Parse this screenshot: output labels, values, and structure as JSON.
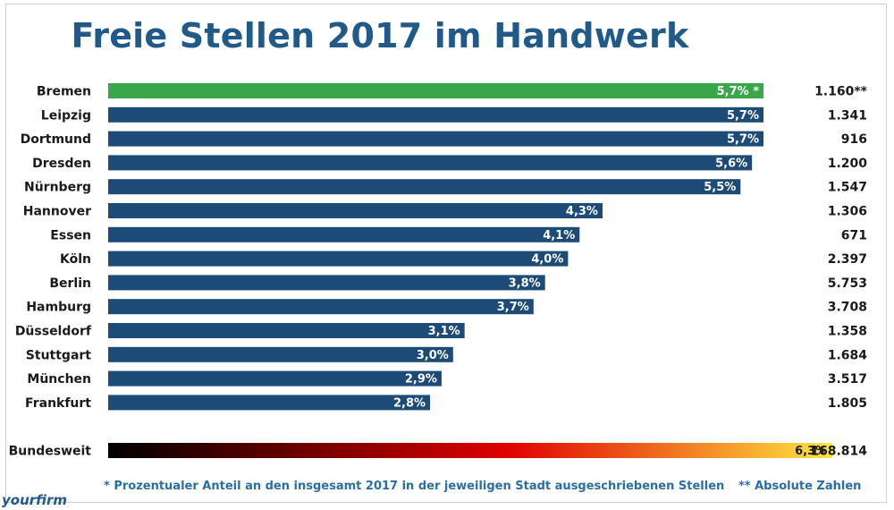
{
  "title": "Freie Stellen 2017 im Handwerk",
  "chart_data": {
    "type": "bar",
    "orientation": "horizontal",
    "title": "Freie Stellen 2017 im Handwerk",
    "xlim": [
      0,
      6.3
    ],
    "categories": [
      "Bremen",
      "Leipzig",
      "Dortmund",
      "Dresden",
      "Nürnberg",
      "Hannover",
      "Essen",
      "Köln",
      "Berlin",
      "Hamburg",
      "Düsseldorf",
      "Stuttgart",
      "München",
      "Frankfurt"
    ],
    "values": [
      5.7,
      5.7,
      5.7,
      5.6,
      5.5,
      4.3,
      4.1,
      4.0,
      3.8,
      3.7,
      3.1,
      3.0,
      2.9,
      2.8
    ],
    "value_labels": [
      "5,7% *",
      "5,7%",
      "5,7%",
      "5,6%",
      "5,5%",
      "4,3%",
      "4,1%",
      "4,0%",
      "3,8%",
      "3,7%",
      "3,1%",
      "3,0%",
      "2,9%",
      "2,8%"
    ],
    "absolute_labels": [
      "1.160**",
      "1.341",
      "916",
      "1.200",
      "1.547",
      "1.306",
      "671",
      "2.397",
      "5.753",
      "3.708",
      "1.358",
      "1.684",
      "3.517",
      "1.805"
    ],
    "colors": {
      "default": "#1d4b78",
      "highlight": "#3aa64a",
      "highlight_index": 0
    },
    "total": {
      "category": "Bundesweit",
      "value": 6.3,
      "value_label": "6,3%",
      "absolute_label": "168.814",
      "gradient": [
        "#000000",
        "#e00000",
        "#ffe640"
      ]
    }
  },
  "footnotes": {
    "left": "* Prozentualer Anteil an den insgesamt 2017 in der jeweiligen Stadt ausgeschriebenen Stellen",
    "right": "** Absolute Zahlen"
  },
  "logo": "yourfirm"
}
